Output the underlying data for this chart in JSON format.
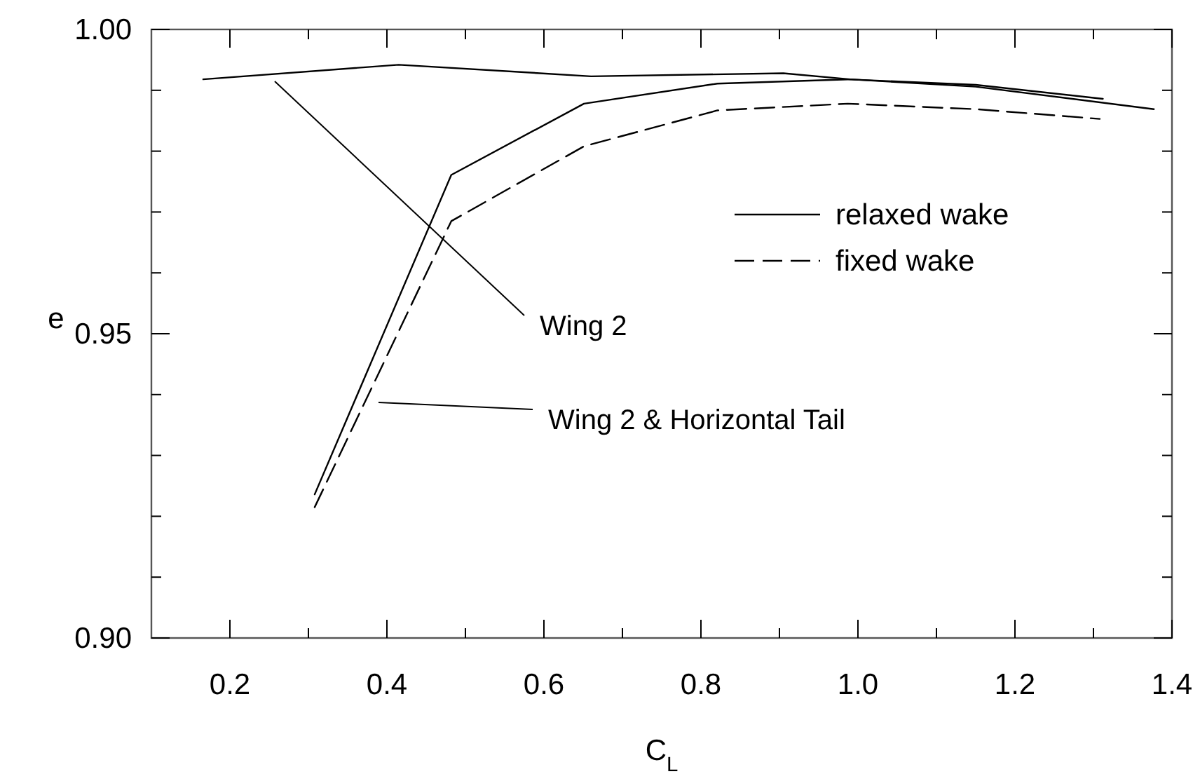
{
  "chart_data": {
    "type": "line",
    "xlabel": "C$_{L}$",
    "ylabel": "e",
    "xlim": [
      0.1,
      1.4
    ],
    "ylim": [
      0.9,
      1.0
    ],
    "xticks": [
      {
        "value": 0.2,
        "label": "0.2"
      },
      {
        "value": 0.3,
        "label": null
      },
      {
        "value": 0.4,
        "label": "0.4"
      },
      {
        "value": 0.5,
        "label": null
      },
      {
        "value": 0.6,
        "label": "0.6"
      },
      {
        "value": 0.7,
        "label": null
      },
      {
        "value": 0.8,
        "label": "0.8"
      },
      {
        "value": 0.9,
        "label": null
      },
      {
        "value": 1.0,
        "label": "1.0"
      },
      {
        "value": 1.1,
        "label": null
      },
      {
        "value": 1.2,
        "label": "1.2"
      },
      {
        "value": 1.3,
        "label": null
      },
      {
        "value": 1.4,
        "label": "1.4"
      }
    ],
    "yticks": [
      {
        "value": 0.9,
        "label": "0.90"
      },
      {
        "value": 0.91,
        "label": null
      },
      {
        "value": 0.92,
        "label": null
      },
      {
        "value": 0.93,
        "label": null
      },
      {
        "value": 0.94,
        "label": null
      },
      {
        "value": 0.95,
        "label": "0.95"
      },
      {
        "value": 0.96,
        "label": null
      },
      {
        "value": 0.97,
        "label": null
      },
      {
        "value": 0.98,
        "label": null
      },
      {
        "value": 0.99,
        "label": null
      },
      {
        "value": 1.0,
        "label": "1.00"
      }
    ],
    "grid": false,
    "legend": "right",
    "marker": "none",
    "series": [
      {
        "color": "#000000",
        "line_style": "solid",
        "x": [
          0.166,
          0.415,
          0.66,
          0.905,
          0.99,
          1.15,
          1.377
        ],
        "values": [
          0.9918,
          0.9942,
          0.9923,
          0.9928,
          0.9918,
          0.9906,
          0.9869
        ]
      },
      {
        "name": "relaxed wake",
        "color": "#000000",
        "line_style": "solid",
        "x": [
          0.308,
          0.482,
          0.651,
          0.821,
          0.987,
          1.15,
          1.312
        ],
        "values": [
          0.9236,
          0.9761,
          0.9878,
          0.9911,
          0.9918,
          0.9909,
          0.9886
        ]
      },
      {
        "name": "fixed wake",
        "color": "#000000",
        "line_style": "dashed",
        "x": [
          0.308,
          0.482,
          0.651,
          0.821,
          0.987,
          1.15,
          1.308
        ],
        "values": [
          0.9215,
          0.9685,
          0.9808,
          0.9867,
          0.9878,
          0.9869,
          0.9853
        ]
      }
    ],
    "annotations": [
      "Wing 2",
      "Wing 2 & Horizontal Tail"
    ]
  }
}
